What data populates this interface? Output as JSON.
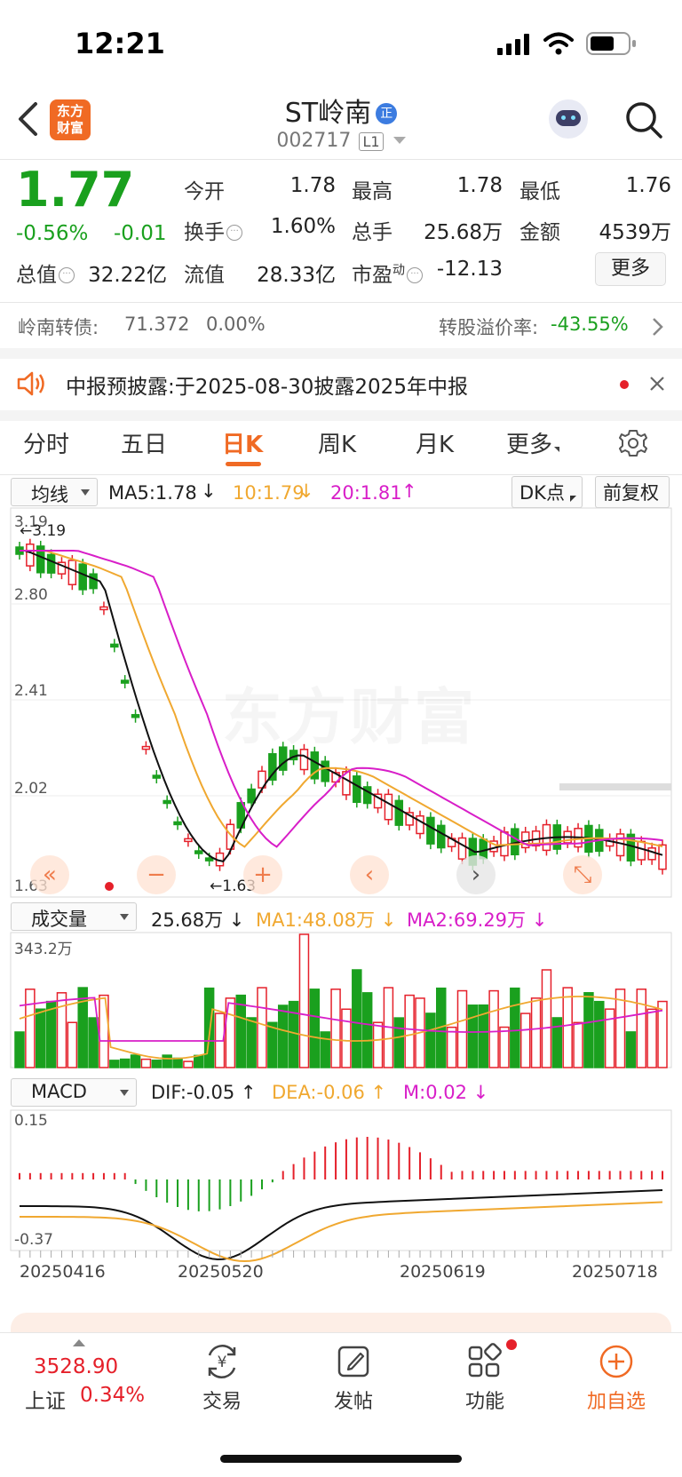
{
  "status_bar": {
    "time": "12:21"
  },
  "header": {
    "title": "ST岭南",
    "badge": "正",
    "code": "002717",
    "level": "L1",
    "logo_line1": "东方",
    "logo_line2": "财富"
  },
  "quote": {
    "price": "1.77",
    "change_pct": "-0.56%",
    "change": "-0.01",
    "open_label": "今开",
    "open": "1.78",
    "high_label": "最高",
    "high": "1.78",
    "low_label": "最低",
    "low": "1.76",
    "turnover_label": "换手",
    "turnover": "1.60%",
    "volume_label": "总手",
    "volume": "25.68万",
    "amount_label": "金额",
    "amount": "4539万",
    "mktcap_label": "总值",
    "mktcap": "32.22亿",
    "float_label": "流值",
    "float": "28.33亿",
    "pe_label": "市盈",
    "pe_sup": "动",
    "pe": "-12.13",
    "more_button": "更多"
  },
  "bond": {
    "name": "岭南转债:",
    "price": "71.372",
    "pct": "0.00%",
    "premium_label": "转股溢价率:",
    "premium": "-43.55%"
  },
  "notice": {
    "text": "中报预披露:于2025-08-30披露2025年中报"
  },
  "tabs": [
    "分时",
    "五日",
    "日K",
    "周K",
    "月K",
    "更多"
  ],
  "kline": {
    "selector": "均线",
    "ma5": "MA5:1.78",
    "ma10": "10:1.79",
    "ma20": "20:1.81",
    "dk_button": "DK点",
    "adjust_button": "前复权",
    "y_labels": [
      "3.19",
      "2.80",
      "2.41",
      "2.02",
      "1.63"
    ],
    "high_marker": "3.19",
    "low_marker": "1.63",
    "watermark": "东方财富"
  },
  "volume": {
    "selector": "成交量",
    "current": "25.68万",
    "ma1": "MA1:48.08万",
    "ma2": "MA2:69.29万",
    "max_label": "343.2万"
  },
  "macd": {
    "selector": "MACD",
    "dif": "DIF:-0.05",
    "dea": "DEA:-0.06",
    "m": "M:0.02",
    "top_label": "0.15",
    "bottom_label": "-0.37"
  },
  "dates": [
    "20250416",
    "20250520",
    "20250619",
    "20250718"
  ],
  "index": {
    "value": "3528.90",
    "name": "上证",
    "pct": "0.34%"
  },
  "bottom_nav": [
    {
      "label": "交易",
      "icon": "yen-exchange-icon"
    },
    {
      "label": "发帖",
      "icon": "edit-icon"
    },
    {
      "label": "功能",
      "icon": "grid-icon"
    },
    {
      "label": "加自选",
      "icon": "add-circle-icon"
    }
  ],
  "colors": {
    "up": "#e5202a",
    "down": "#1aa01e",
    "accent": "#f06a24",
    "ma10": "#f0a830",
    "ma20": "#d81ec8"
  }
}
